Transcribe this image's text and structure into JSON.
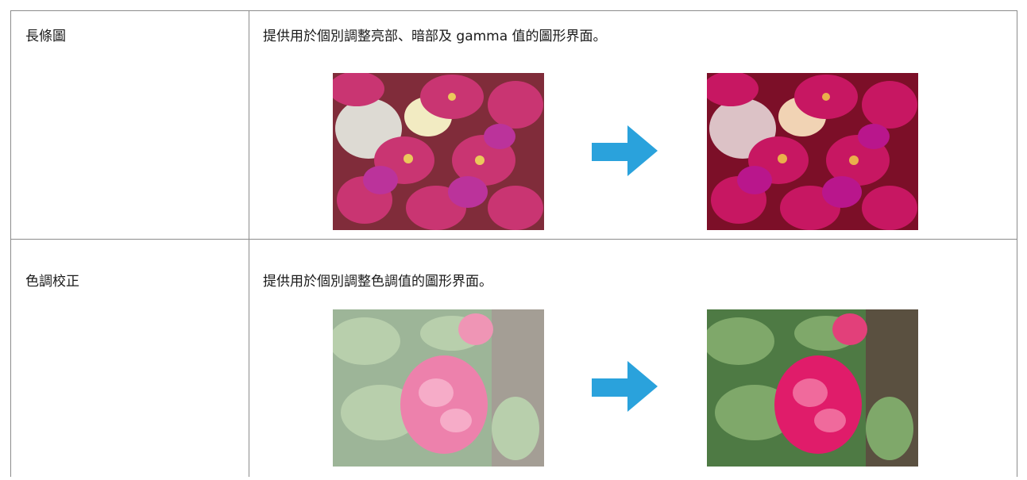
{
  "table": {
    "rows": [
      [
        "長條圖",
        "提供用於個別調整亮部、暗部及 gamma 值的圖形界面。"
      ],
      [
        "色調校正",
        "提供用於個別調整色調值的圖形界面。"
      ]
    ]
  }
}
